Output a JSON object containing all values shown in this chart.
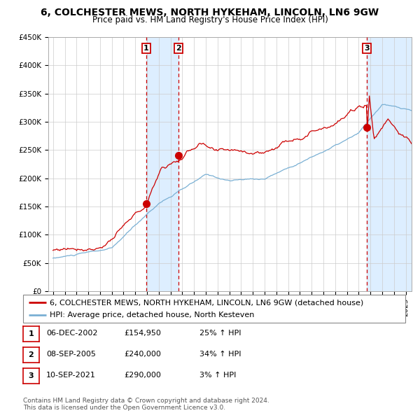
{
  "title": "6, COLCHESTER MEWS, NORTH HYKEHAM, LINCOLN, LN6 9GW",
  "subtitle": "Price paid vs. HM Land Registry's House Price Index (HPI)",
  "ylabel_ticks": [
    "£0",
    "£50K",
    "£100K",
    "£150K",
    "£200K",
    "£250K",
    "£300K",
    "£350K",
    "£400K",
    "£450K"
  ],
  "ytick_values": [
    0,
    50000,
    100000,
    150000,
    200000,
    250000,
    300000,
    350000,
    400000,
    450000
  ],
  "ylim": [
    0,
    450000
  ],
  "xlim_start": 1994.6,
  "xlim_end": 2025.5,
  "sale_dates": [
    2002.92,
    2005.69,
    2021.69
  ],
  "sale_prices": [
    154950,
    240000,
    290000
  ],
  "sale_labels": [
    "1",
    "2",
    "3"
  ],
  "sale_annotations": [
    {
      "label": "1",
      "date": "06-DEC-2002",
      "price": "£154,950",
      "hpi": "25% ↑ HPI"
    },
    {
      "label": "2",
      "date": "08-SEP-2005",
      "price": "£240,000",
      "hpi": "34% ↑ HPI"
    },
    {
      "label": "3",
      "date": "10-SEP-2021",
      "price": "£290,000",
      "hpi": "3% ↑ HPI"
    }
  ],
  "legend_line1": "6, COLCHESTER MEWS, NORTH HYKEHAM, LINCOLN, LN6 9GW (detached house)",
  "legend_line2": "HPI: Average price, detached house, North Kesteven",
  "footer_line1": "Contains HM Land Registry data © Crown copyright and database right 2024.",
  "footer_line2": "This data is licensed under the Open Government Licence v3.0.",
  "price_line_color": "#cc0000",
  "hpi_line_color": "#7ab0d4",
  "background_color": "#ffffff",
  "grid_color": "#cccccc",
  "shade_color": "#ddeeff",
  "vline_color": "#cc0000",
  "title_fontsize": 10,
  "subtitle_fontsize": 8.5,
  "tick_fontsize": 7.5,
  "legend_fontsize": 8,
  "annotation_fontsize": 8,
  "footer_fontsize": 6.5
}
